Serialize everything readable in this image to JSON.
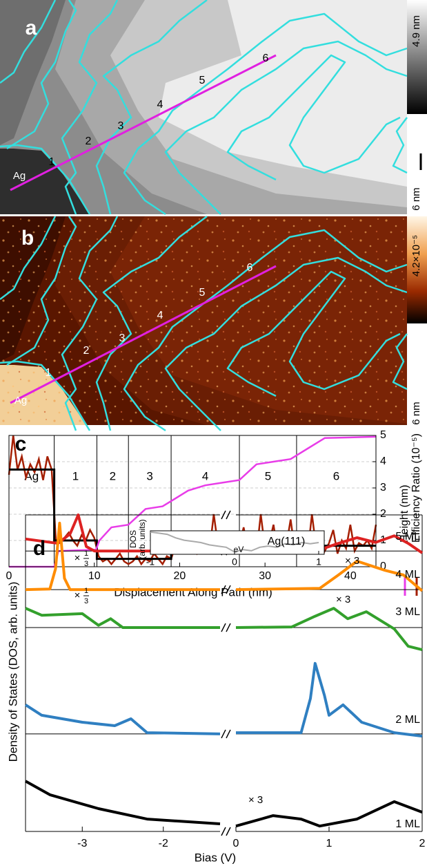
{
  "panel_a": {
    "label": "a",
    "region_label": "Ag",
    "path_labels": [
      "1",
      "2",
      "3",
      "4",
      "5",
      "6"
    ],
    "colorbar_label": "4.9 nm",
    "scale_bar_label": "6 nm"
  },
  "panel_b": {
    "label": "b",
    "region_label": "Ag",
    "path_labels": [
      "1",
      "2",
      "3",
      "4",
      "5",
      "6"
    ],
    "colorbar_label": "4.2×10⁻⁵",
    "scale_bar_label": "6 nm"
  },
  "chart_data": [
    {
      "type": "line",
      "label": "c",
      "xlabel": "Displacement Along Path (nm)",
      "xlim": [
        0,
        43
      ],
      "xticks": [
        0,
        10,
        20,
        30,
        40
      ],
      "ylim": [
        0,
        5
      ],
      "yticks": [
        0,
        1,
        2,
        3,
        4,
        5
      ],
      "grid": true,
      "regions": [
        "Ag",
        "1",
        "2",
        "3",
        "4",
        "5",
        "6"
      ],
      "region_boundaries": [
        5.3,
        10.3,
        14,
        19,
        27,
        33.7
      ],
      "series": [
        {
          "name": "Efficiency Ratio (10⁻⁵)",
          "color": "#a41e00",
          "x": [
            0,
            0.5,
            1,
            1.5,
            2,
            2.5,
            3,
            3.5,
            4,
            4.5,
            5,
            5.5,
            6,
            6.5,
            7,
            7.5,
            8,
            8.5,
            9,
            9.5,
            10,
            10.5,
            11,
            11.5,
            12,
            12.5,
            13,
            13.5,
            14,
            14.5,
            15,
            15.5,
            16,
            16.5,
            17,
            17.5,
            18,
            18.5,
            19,
            19.5,
            20,
            20.5,
            21,
            21.5,
            22,
            22.5,
            23,
            23.5,
            24,
            24.5,
            25,
            25.5,
            26,
            26.5,
            27,
            27.5,
            28,
            28.5,
            29,
            29.5,
            30,
            30.5,
            31,
            31.5,
            32,
            32.5,
            33,
            33.5,
            34,
            34.5,
            35,
            35.5,
            36,
            36.5,
            37,
            37.5,
            38,
            38.5,
            39,
            39.5,
            40,
            40.5,
            41,
            41.5,
            42,
            42.5,
            43
          ],
          "values": [
            3.5,
            5.0,
            3.7,
            4.2,
            3.4,
            3.9,
            3.6,
            4.1,
            3.3,
            4.2,
            3.7,
            1.0,
            0.9,
            1.1,
            1.3,
            1.0,
            0.8,
            1.2,
            1.0,
            1.4,
            1.1,
            0.4,
            0.2,
            0.3,
            0.1,
            0.3,
            0.5,
            0.2,
            0.1,
            0.2,
            0.4,
            0.1,
            0.3,
            0.2,
            0.5,
            0.3,
            0.1,
            0.4,
            0.3,
            0.8,
            0.6,
            0.9,
            1.0,
            0.7,
            0.5,
            0.9,
            1.1,
            0.6,
            2.0,
            0.8,
            0.7,
            1.0,
            0.6,
            0.9,
            0.8,
            1.5,
            0.6,
            1.2,
            0.5,
            2.0,
            0.7,
            0.9,
            1.6,
            0.5,
            1.0,
            0.8,
            1.8,
            0.6,
            0.9,
            1.0,
            0.5,
            2.0,
            0.7,
            1.1,
            0.6,
            0.9,
            1.4,
            0.5,
            1.0,
            0.7,
            1.6,
            0.6,
            0.9,
            0.8,
            1.0,
            0.7,
            1.6
          ]
        },
        {
          "color": "#000000",
          "x": [
            0,
            5.3,
            5.3,
            10.3,
            10.3,
            19,
            19,
            43
          ],
          "values": [
            3.7,
            3.7,
            1.0,
            1.0,
            0.3,
            0.3,
            0.8,
            0.8
          ]
        },
        {
          "name": "Height (nm)",
          "color": "#e83ce8",
          "x": [
            0,
            5.3,
            5.8,
            10.2,
            10.6,
            12,
            14,
            16,
            18,
            19,
            21,
            23,
            25,
            27,
            29,
            31,
            33,
            35,
            37,
            43
          ],
          "values": [
            0,
            0,
            0.6,
            0.65,
            1.0,
            1.5,
            1.6,
            2.2,
            2.3,
            2.5,
            2.9,
            3.1,
            3.2,
            3.3,
            3.9,
            4.0,
            4.1,
            4.5,
            4.9,
            4.95
          ]
        }
      ]
    },
    {
      "type": "line",
      "label": "d",
      "ylabel": "Density of States (DOS, arb. units)",
      "xlabel": "Bias (V)",
      "xlim": [
        -3.7,
        2
      ],
      "xbreak": [
        -1.3,
        0
      ],
      "xticks": [
        -3,
        -2,
        0,
        1,
        2
      ],
      "ylim": [
        0,
        10
      ],
      "baselines": [
        8.86,
        7.64,
        6.44,
        3.08
      ],
      "series": [
        {
          "name": "5 ML",
          "color": "#dd2222",
          "scale_left": {
            "prefix": "×",
            "numerator": "1",
            "denominator": "3"
          },
          "scale_right": "× 3",
          "x": [
            -3.7,
            -3.3,
            -3.15,
            -3.05,
            -2.95,
            -2.85,
            -1.3,
            0,
            0.9,
            1.1,
            1.3,
            1.5,
            1.7,
            1.85,
            2
          ],
          "values": [
            9.24,
            9.1,
            9.4,
            10,
            9.0,
            8.86,
            8.86,
            8.86,
            8.9,
            9.1,
            9.28,
            9.13,
            9.34,
            9.1,
            8.8
          ]
        },
        {
          "name": "4 ML",
          "color": "#ff8c00",
          "scale_left": {
            "prefix": "×",
            "numerator": "1",
            "denominator": "3"
          },
          "scale_right": "× 3",
          "x": [
            -3.7,
            -3.4,
            -3.33,
            -3.28,
            -3.22,
            -3.15,
            -1.3,
            0,
            0.9,
            1.1,
            1.3,
            1.6,
            1.8,
            2
          ],
          "values": [
            7.64,
            7.66,
            8.3,
            9.74,
            8.0,
            7.64,
            7.64,
            7.64,
            7.68,
            8.1,
            8.54,
            8.25,
            8.1,
            7.6
          ]
        },
        {
          "name": "3 ML",
          "color": "#33a02c",
          "x": [
            -3.7,
            -3.5,
            -3.0,
            -2.8,
            -2.65,
            -2.5,
            -1.3,
            0,
            0.6,
            0.85,
            1.05,
            1.2,
            1.4,
            1.7,
            1.85,
            2
          ],
          "values": [
            7.05,
            6.83,
            6.88,
            6.51,
            6.72,
            6.44,
            6.44,
            6.44,
            6.46,
            6.8,
            7.05,
            6.72,
            6.94,
            6.4,
            5.85,
            5.74
          ]
        },
        {
          "name": "2 ML",
          "color": "#2f7fc1",
          "x": [
            -3.7,
            -3.5,
            -3.0,
            -2.6,
            -2.4,
            -2.2,
            -1.3,
            0,
            0.7,
            0.8,
            0.85,
            0.95,
            1.0,
            1.15,
            1.35,
            1.7,
            2
          ],
          "values": [
            4.0,
            3.67,
            3.45,
            3.34,
            3.56,
            3.12,
            3.08,
            3.12,
            3.12,
            4.2,
            5.31,
            4.3,
            3.67,
            4.0,
            3.45,
            3.12,
            3.01
          ]
        },
        {
          "name": "1 ML",
          "color": "#000000",
          "scale_right": "× 3",
          "x": [
            -3.7,
            -3.4,
            -2.8,
            -2.2,
            -1.3,
            0,
            0.4,
            0.7,
            0.9,
            1.3,
            1.7,
            2
          ],
          "values": [
            1.59,
            1.16,
            0.72,
            0.39,
            0.24,
            0.17,
            0.5,
            0.39,
            0.17,
            0.39,
            0.94,
            0.61
          ]
        }
      ]
    },
    {
      "type": "line",
      "title": "Ag(111)",
      "ylabel": [
        "DOS",
        "(arb. units)"
      ],
      "xlabel": "eV",
      "xlim": [
        -1,
        1
      ],
      "xticks": [
        -1,
        0,
        1
      ],
      "ylim": [
        0,
        1
      ],
      "series": [
        {
          "color": "#aaaaaa",
          "x": [
            -1,
            -0.9,
            -0.8,
            -0.7,
            -0.6,
            -0.5,
            -0.4,
            -0.3,
            -0.2,
            -0.1,
            0,
            0.1,
            0.2,
            0.3,
            0.4,
            0.5,
            0.6,
            0.7,
            0.8,
            0.9,
            1
          ],
          "values": [
            0.95,
            0.9,
            0.85,
            0.7,
            0.6,
            0.55,
            0.5,
            0.4,
            0.35,
            0.3,
            0.1,
            0.2,
            0.15,
            0.3,
            0.35,
            0.3,
            0.45,
            0.4,
            0.5,
            0.45,
            0.5
          ]
        }
      ]
    }
  ]
}
